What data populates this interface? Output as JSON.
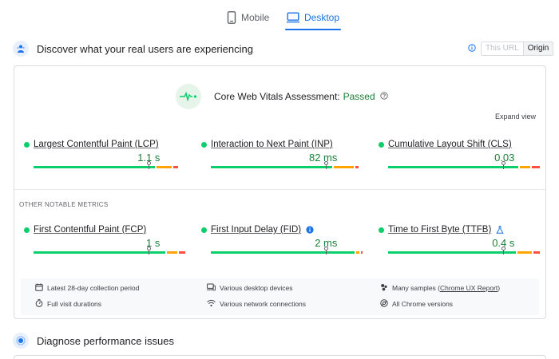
{
  "tabs": [
    {
      "label": "Mobile",
      "icon": "phone-icon",
      "active": false
    },
    {
      "label": "Desktop",
      "icon": "monitor-icon",
      "active": true
    }
  ],
  "field_section": {
    "title": "Discover what your real users are experiencing",
    "toggle": {
      "this_url": "This URL",
      "origin": "Origin",
      "selected": "Origin"
    }
  },
  "assessment": {
    "label": "Core Web Vitals Assessment:",
    "status": "Passed",
    "expand_label": "Expand view"
  },
  "core_metrics": [
    {
      "name": "Largest Contentful Paint (LCP)",
      "value": "1.1 s",
      "distribution": {
        "good": 0.8,
        "needs_improvement": 0.1,
        "poor": 0.03
      },
      "marker": 0.76
    },
    {
      "name": "Interaction to Next Paint (INP)",
      "value": "82 ms",
      "distribution": {
        "good": 0.8,
        "needs_improvement": 0.13,
        "poor": 0.02
      },
      "marker": 0.76
    },
    {
      "name": "Cumulative Layout Shift (CLS)",
      "value": "0.03",
      "distribution": {
        "good": 0.87,
        "needs_improvement": 0.07,
        "poor": 0.05
      },
      "marker": 0.76
    }
  ],
  "other_title": "OTHER NOTABLE METRICS",
  "other_metrics": [
    {
      "name": "First Contentful Paint (FCP)",
      "value": "1 s",
      "extra_icon": "",
      "distribution": {
        "good": 0.88,
        "needs_improvement": 0.07,
        "poor": 0.04
      },
      "marker": 0.76
    },
    {
      "name": "First Input Delay (FID)",
      "value": "2 ms",
      "extra_icon": "info-icon",
      "distribution": {
        "good": 0.97,
        "needs_improvement": 0.02,
        "poor": 0.01
      },
      "marker": 0.76
    },
    {
      "name": "Time to First Byte (TTFB)",
      "value": "0.4 s",
      "extra_icon": "flask-icon",
      "distribution": {
        "good": 0.86,
        "needs_improvement": 0.1,
        "poor": 0.04
      },
      "marker": 0.76
    }
  ],
  "footer": {
    "period": "Latest 28-day collection period",
    "devices": "Various desktop devices",
    "samples_prefix": "Many samples (",
    "samples_link": "Chrome UX Report",
    "samples_suffix": ")",
    "durations": "Full visit durations",
    "network": "Various network connections",
    "versions": "All Chrome versions"
  },
  "lab_section": {
    "title": "Diagnose performance issues"
  },
  "colors": {
    "good": "#0cce6b",
    "needs_improvement": "#ffa400",
    "poor": "#ff4e42",
    "accent": "#1a73e8",
    "passed": "#188038"
  }
}
